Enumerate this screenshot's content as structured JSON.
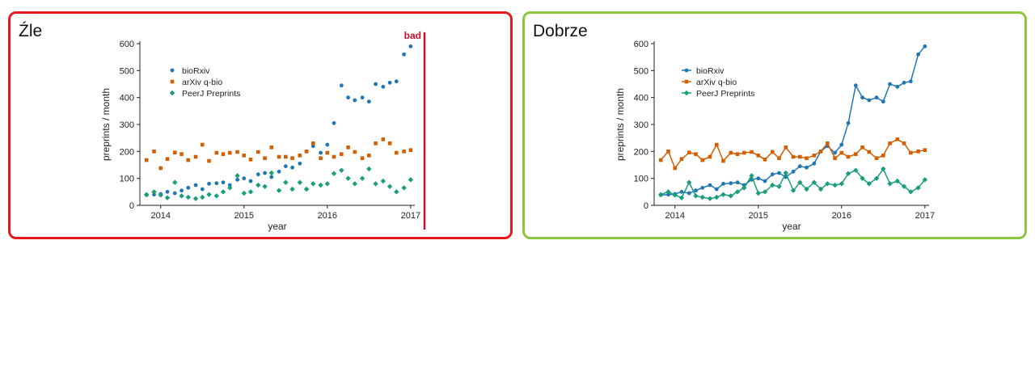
{
  "panels": [
    {
      "title": "Źle",
      "marker_label": "bad",
      "marker_color": "#c8102e",
      "border_color": "#e41a1c",
      "connect_lines": false
    },
    {
      "title": "Dobrze",
      "border_color": "#8cc63f",
      "connect_lines": true
    }
  ],
  "chart_data": {
    "type": "line",
    "xlabel": "year",
    "ylabel": "preprints / month",
    "ylim": [
      0,
      600
    ],
    "yticks": [
      0,
      100,
      200,
      300,
      400,
      500,
      600
    ],
    "xlim": [
      2013.75,
      2017.05
    ],
    "xticks": [
      "2014",
      "2015",
      "2016",
      "2017"
    ],
    "legend_position": "top-left",
    "x": [
      2013.83,
      2013.92,
      2014.0,
      2014.08,
      2014.17,
      2014.25,
      2014.33,
      2014.42,
      2014.5,
      2014.58,
      2014.67,
      2014.75,
      2014.83,
      2014.92,
      2015.0,
      2015.08,
      2015.17,
      2015.25,
      2015.33,
      2015.42,
      2015.5,
      2015.58,
      2015.67,
      2015.75,
      2015.83,
      2015.92,
      2016.0,
      2016.08,
      2016.17,
      2016.25,
      2016.33,
      2016.42,
      2016.5,
      2016.58,
      2016.67,
      2016.75,
      2016.83,
      2016.92,
      2017.0
    ],
    "series": [
      {
        "name": "bioRxiv",
        "color": "#1f77b4",
        "marker": "circle",
        "values": [
          38,
          40,
          42,
          50,
          45,
          55,
          65,
          75,
          60,
          80,
          82,
          85,
          75,
          95,
          100,
          90,
          115,
          120,
          105,
          125,
          145,
          140,
          155,
          200,
          220,
          195,
          225,
          305,
          445,
          400,
          390,
          400,
          385,
          450,
          440,
          455,
          460,
          560,
          590
        ]
      },
      {
        "name": "arXiv q-bio",
        "color": "#d55e00",
        "marker": "square",
        "values": [
          168,
          200,
          138,
          172,
          196,
          190,
          168,
          180,
          225,
          165,
          195,
          190,
          195,
          198,
          185,
          170,
          198,
          175,
          215,
          180,
          180,
          175,
          185,
          200,
          230,
          175,
          195,
          180,
          190,
          215,
          198,
          175,
          185,
          230,
          245,
          230,
          195,
          200,
          205
        ]
      },
      {
        "name": "PeerJ Preprints",
        "color": "#1a9e77",
        "marker": "diamond",
        "values": [
          40,
          50,
          38,
          28,
          85,
          35,
          30,
          25,
          30,
          40,
          35,
          50,
          65,
          110,
          45,
          50,
          75,
          70,
          120,
          55,
          85,
          60,
          85,
          60,
          80,
          75,
          80,
          118,
          130,
          100,
          80,
          100,
          135,
          80,
          90,
          70,
          50,
          65,
          95
        ]
      }
    ]
  }
}
